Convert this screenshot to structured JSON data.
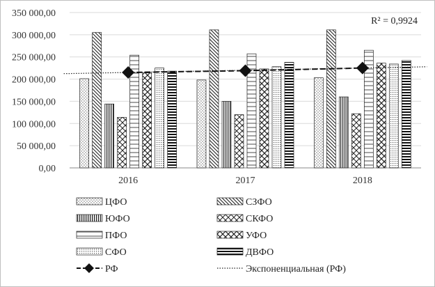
{
  "chart_data": {
    "type": "bar",
    "categories": [
      "2016",
      "2017",
      "2018"
    ],
    "ylim": [
      0,
      350000
    ],
    "yticks": [
      "0,00",
      "50 000,00",
      "100 000,00",
      "150 000,00",
      "200 000,00",
      "250 000,00",
      "300 000,00",
      "350 000,00"
    ],
    "series": [
      {
        "name": "ЦФО",
        "pattern": "dots",
        "values": [
          201000,
          198000,
          203000
        ]
      },
      {
        "name": "СЗФО",
        "pattern": "diag",
        "values": [
          305000,
          311000,
          311000
        ]
      },
      {
        "name": "ЮФО",
        "pattern": "vert",
        "values": [
          144000,
          150000,
          160000
        ]
      },
      {
        "name": "СКФО",
        "pattern": "zigzag",
        "values": [
          114000,
          120000,
          122000
        ]
      },
      {
        "name": "ПФО",
        "pattern": "horiz",
        "values": [
          254000,
          257000,
          265000
        ]
      },
      {
        "name": "УФО",
        "pattern": "cross",
        "values": [
          214000,
          223000,
          236000
        ]
      },
      {
        "name": "СФО",
        "pattern": "dense",
        "values": [
          225000,
          228000,
          234000
        ]
      },
      {
        "name": "ДВФО",
        "pattern": "hthick",
        "values": [
          218000,
          238000,
          242000
        ]
      }
    ],
    "line_series": {
      "name": "РФ",
      "values": [
        215000,
        219000,
        225000
      ]
    },
    "trendline": {
      "name": "Экспоненциальная (РФ)",
      "r2_label": "R² = 0,9924"
    },
    "legend_position": "bottom"
  }
}
